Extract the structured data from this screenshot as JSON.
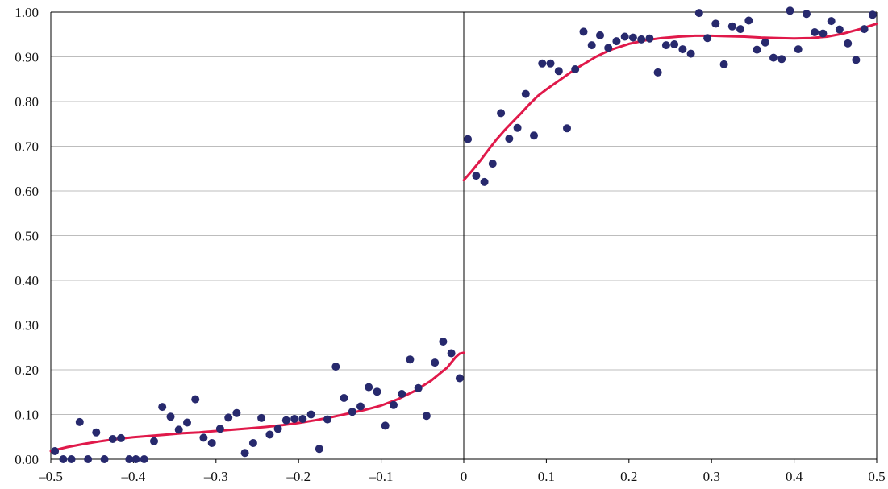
{
  "chart_data": {
    "type": "scatter",
    "title": "",
    "xlabel": "",
    "ylabel": "",
    "xlim": [
      -0.5,
      0.5
    ],
    "ylim": [
      0.0,
      1.0
    ],
    "grid": "horizontal",
    "legend": "none",
    "xticks": [
      -0.5,
      -0.4,
      -0.3,
      -0.2,
      -0.1,
      0,
      0.1,
      0.2,
      0.3,
      0.4,
      0.5
    ],
    "xtick_labels": [
      "–0.5",
      "–0.4",
      "–0.3",
      "–0.2",
      "–0.1",
      "0",
      "0.1",
      "0.2",
      "0.3",
      "0.4",
      "0.5"
    ],
    "yticks": [
      0.0,
      0.1,
      0.2,
      0.3,
      0.4,
      0.5,
      0.6,
      0.7,
      0.8,
      0.9,
      1.0
    ],
    "ytick_labels": [
      "0.00",
      "0.10",
      "0.20",
      "0.30",
      "0.40",
      "0.50",
      "0.60",
      "0.70",
      "0.80",
      "0.90",
      "1.00"
    ],
    "colors": {
      "points": "#27296d",
      "fit": "#e0194a",
      "grid": "#bdbdbd",
      "axis": "#000000"
    },
    "series": [
      {
        "type": "scatter",
        "points": [
          [
            -0.495,
            0.018
          ],
          [
            -0.485,
            0.0
          ],
          [
            -0.475,
            0.0
          ],
          [
            -0.465,
            0.083
          ],
          [
            -0.455,
            0.0
          ],
          [
            -0.445,
            0.06
          ],
          [
            -0.435,
            0.0
          ],
          [
            -0.425,
            0.045
          ],
          [
            -0.415,
            0.047
          ],
          [
            -0.405,
            0.0
          ],
          [
            -0.397,
            0.0
          ],
          [
            -0.387,
            0.0
          ],
          [
            -0.375,
            0.04
          ],
          [
            -0.365,
            0.117
          ],
          [
            -0.355,
            0.095
          ],
          [
            -0.345,
            0.066
          ],
          [
            -0.335,
            0.082
          ],
          [
            -0.325,
            0.134
          ],
          [
            -0.315,
            0.048
          ],
          [
            -0.305,
            0.036
          ],
          [
            -0.295,
            0.068
          ],
          [
            -0.285,
            0.093
          ],
          [
            -0.275,
            0.103
          ],
          [
            -0.265,
            0.014
          ],
          [
            -0.255,
            0.036
          ],
          [
            -0.245,
            0.092
          ],
          [
            -0.235,
            0.055
          ],
          [
            -0.225,
            0.068
          ],
          [
            -0.215,
            0.087
          ],
          [
            -0.205,
            0.09
          ],
          [
            -0.195,
            0.09
          ],
          [
            -0.185,
            0.1
          ],
          [
            -0.175,
            0.023
          ],
          [
            -0.165,
            0.089
          ],
          [
            -0.155,
            0.207
          ],
          [
            -0.145,
            0.137
          ],
          [
            -0.135,
            0.106
          ],
          [
            -0.125,
            0.118
          ],
          [
            -0.115,
            0.161
          ],
          [
            -0.105,
            0.151
          ],
          [
            -0.095,
            0.075
          ],
          [
            -0.085,
            0.121
          ],
          [
            -0.075,
            0.146
          ],
          [
            -0.065,
            0.223
          ],
          [
            -0.055,
            0.159
          ],
          [
            -0.045,
            0.097
          ],
          [
            -0.035,
            0.216
          ],
          [
            -0.025,
            0.263
          ],
          [
            -0.015,
            0.237
          ],
          [
            -0.005,
            0.181
          ],
          [
            0.005,
            0.716
          ],
          [
            0.015,
            0.634
          ],
          [
            0.025,
            0.62
          ],
          [
            0.035,
            0.661
          ],
          [
            0.045,
            0.774
          ],
          [
            0.055,
            0.717
          ],
          [
            0.065,
            0.741
          ],
          [
            0.075,
            0.817
          ],
          [
            0.085,
            0.724
          ],
          [
            0.095,
            0.885
          ],
          [
            0.105,
            0.885
          ],
          [
            0.115,
            0.868
          ],
          [
            0.125,
            0.74
          ],
          [
            0.135,
            0.872
          ],
          [
            0.145,
            0.956
          ],
          [
            0.155,
            0.926
          ],
          [
            0.165,
            0.948
          ],
          [
            0.175,
            0.92
          ],
          [
            0.185,
            0.935
          ],
          [
            0.195,
            0.945
          ],
          [
            0.205,
            0.943
          ],
          [
            0.215,
            0.939
          ],
          [
            0.225,
            0.941
          ],
          [
            0.235,
            0.865
          ],
          [
            0.245,
            0.926
          ],
          [
            0.255,
            0.928
          ],
          [
            0.265,
            0.917
          ],
          [
            0.275,
            0.907
          ],
          [
            0.285,
            0.998
          ],
          [
            0.295,
            0.942
          ],
          [
            0.305,
            0.974
          ],
          [
            0.315,
            0.883
          ],
          [
            0.325,
            0.968
          ],
          [
            0.335,
            0.962
          ],
          [
            0.345,
            0.981
          ],
          [
            0.355,
            0.916
          ],
          [
            0.365,
            0.932
          ],
          [
            0.375,
            0.898
          ],
          [
            0.385,
            0.895
          ],
          [
            0.395,
            1.003
          ],
          [
            0.405,
            0.917
          ],
          [
            0.415,
            0.996
          ],
          [
            0.425,
            0.955
          ],
          [
            0.435,
            0.952
          ],
          [
            0.445,
            0.98
          ],
          [
            0.455,
            0.961
          ],
          [
            0.465,
            0.93
          ],
          [
            0.475,
            0.893
          ],
          [
            0.485,
            0.962
          ],
          [
            0.495,
            0.994
          ]
        ]
      },
      {
        "type": "line",
        "segments": [
          [
            [
              -0.5,
              0.018
            ],
            [
              -0.48,
              0.027
            ],
            [
              -0.46,
              0.034
            ],
            [
              -0.44,
              0.04
            ],
            [
              -0.42,
              0.045
            ],
            [
              -0.4,
              0.049
            ],
            [
              -0.38,
              0.052
            ],
            [
              -0.36,
              0.055
            ],
            [
              -0.34,
              0.058
            ],
            [
              -0.32,
              0.06
            ],
            [
              -0.3,
              0.063
            ],
            [
              -0.28,
              0.066
            ],
            [
              -0.26,
              0.069
            ],
            [
              -0.24,
              0.072
            ],
            [
              -0.22,
              0.076
            ],
            [
              -0.2,
              0.081
            ],
            [
              -0.18,
              0.087
            ],
            [
              -0.16,
              0.094
            ],
            [
              -0.14,
              0.102
            ],
            [
              -0.12,
              0.11
            ],
            [
              -0.1,
              0.12
            ],
            [
              -0.08,
              0.134
            ],
            [
              -0.06,
              0.152
            ],
            [
              -0.04,
              0.175
            ],
            [
              -0.02,
              0.205
            ],
            [
              -0.01,
              0.228
            ],
            [
              -0.005,
              0.236
            ],
            [
              0.0,
              0.238
            ]
          ],
          [
            [
              0.0,
              0.624
            ],
            [
              0.01,
              0.645
            ],
            [
              0.02,
              0.668
            ],
            [
              0.03,
              0.692
            ],
            [
              0.04,
              0.716
            ],
            [
              0.05,
              0.737
            ],
            [
              0.06,
              0.756
            ],
            [
              0.07,
              0.775
            ],
            [
              0.08,
              0.795
            ],
            [
              0.09,
              0.813
            ],
            [
              0.1,
              0.827
            ],
            [
              0.11,
              0.84
            ],
            [
              0.12,
              0.853
            ],
            [
              0.13,
              0.866
            ],
            [
              0.14,
              0.878
            ],
            [
              0.15,
              0.889
            ],
            [
              0.16,
              0.9
            ],
            [
              0.17,
              0.909
            ],
            [
              0.18,
              0.917
            ],
            [
              0.2,
              0.929
            ],
            [
              0.22,
              0.937
            ],
            [
              0.24,
              0.942
            ],
            [
              0.26,
              0.945
            ],
            [
              0.28,
              0.947
            ],
            [
              0.3,
              0.947
            ],
            [
              0.32,
              0.946
            ],
            [
              0.34,
              0.945
            ],
            [
              0.36,
              0.943
            ],
            [
              0.38,
              0.942
            ],
            [
              0.4,
              0.941
            ],
            [
              0.42,
              0.942
            ],
            [
              0.44,
              0.945
            ],
            [
              0.46,
              0.952
            ],
            [
              0.48,
              0.962
            ],
            [
              0.5,
              0.974
            ]
          ]
        ]
      }
    ]
  }
}
